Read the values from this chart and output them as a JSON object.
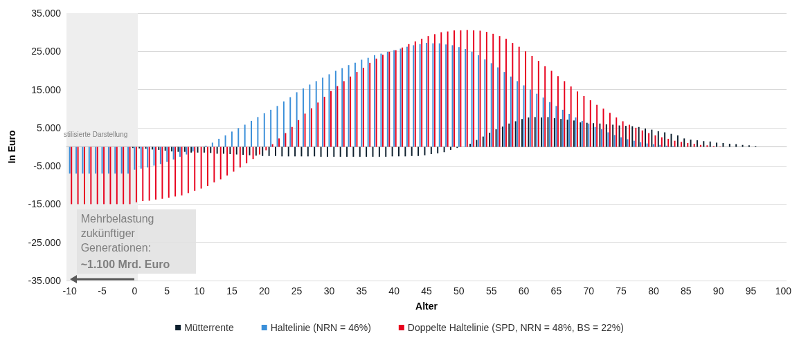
{
  "chart_data": {
    "type": "bar",
    "xlabel": "Alter",
    "ylabel": "In Euro",
    "categories": [
      "-10",
      null,
      null,
      null,
      null,
      "-5",
      null,
      null,
      null,
      null,
      "0",
      null,
      null,
      null,
      null,
      "5",
      null,
      null,
      null,
      null,
      "10",
      null,
      null,
      null,
      null,
      "15",
      null,
      null,
      null,
      null,
      "20",
      null,
      null,
      null,
      null,
      "25",
      null,
      null,
      null,
      null,
      "30",
      null,
      null,
      null,
      null,
      "35",
      null,
      null,
      null,
      null,
      "40",
      null,
      null,
      null,
      null,
      "45",
      null,
      null,
      null,
      null,
      "50",
      null,
      null,
      null,
      null,
      "55",
      null,
      null,
      null,
      null,
      "60",
      null,
      null,
      null,
      null,
      "65",
      null,
      null,
      null,
      null,
      "70",
      null,
      null,
      null,
      null,
      "75",
      null,
      null,
      null,
      null,
      "80",
      null,
      null,
      null,
      null,
      "85",
      null,
      null,
      null,
      null,
      "90",
      null,
      null,
      null,
      null,
      "95",
      null,
      null,
      null,
      null,
      "100"
    ],
    "series": [
      {
        "name": "Mütterrente",
        "color": "#0d1f2d",
        "values": [
          null,
          null,
          null,
          null,
          null,
          null,
          null,
          null,
          null,
          null,
          -300,
          -400,
          -500,
          -700,
          -800,
          -1000,
          -1200,
          -1300,
          -1300,
          -1500,
          -1500,
          -1500,
          -1600,
          -1800,
          -1800,
          -1900,
          -2000,
          -2100,
          -2200,
          -2300,
          -2400,
          -2400,
          -2400,
          -2500,
          -2500,
          -2500,
          -2500,
          -2500,
          -2500,
          -2600,
          -2600,
          -2600,
          -2600,
          -2600,
          -2600,
          -2600,
          -2600,
          -2600,
          -2600,
          -2600,
          -2500,
          -2500,
          -2500,
          -2400,
          -2400,
          -2200,
          -1900,
          -1700,
          -1400,
          -800,
          -300,
          null,
          800,
          1800,
          2700,
          3700,
          4600,
          5300,
          6100,
          6700,
          7300,
          7700,
          7800,
          7700,
          7800,
          7500,
          7300,
          7100,
          6900,
          6400,
          6300,
          6200,
          6100,
          5900,
          5800,
          5600,
          5500,
          5400,
          5200,
          4800,
          4500,
          4100,
          3800,
          3400,
          3000,
          2200,
          1900,
          1700,
          1500,
          1400,
          1100,
          1000,
          800,
          700,
          500,
          400,
          200,
          null,
          null,
          null,
          null
        ]
      },
      {
        "name": "Haltelinie (NRN = 46%)",
        "color": "#3a8fd9",
        "values": [
          -7000,
          -7000,
          -7000,
          -7000,
          -7000,
          -7000,
          -7000,
          -7000,
          -7000,
          -7000,
          -6000,
          -5700,
          -5400,
          -4900,
          -4500,
          -3900,
          -3300,
          -2600,
          -2000,
          -1200,
          null,
          300,
          1100,
          2100,
          3000,
          4000,
          4900,
          5800,
          6800,
          7800,
          8800,
          9700,
          10700,
          11900,
          13000,
          14300,
          15300,
          16300,
          17200,
          18100,
          19000,
          19900,
          20600,
          21400,
          22000,
          22800,
          23300,
          24000,
          24400,
          24900,
          25300,
          25700,
          26200,
          26600,
          26900,
          27200,
          27100,
          27100,
          26800,
          26600,
          26100,
          25600,
          24900,
          24000,
          22900,
          21900,
          20800,
          19600,
          18400,
          17200,
          16100,
          15000,
          13900,
          12900,
          11700,
          10700,
          9700,
          8600,
          7700,
          6800,
          6100,
          5200,
          4600,
          3800,
          3100,
          2500,
          2000,
          1600,
          1200,
          900,
          700,
          500,
          300,
          200,
          null,
          null,
          null,
          null,
          null,
          null,
          null,
          null,
          null,
          null,
          null,
          null,
          null,
          null,
          null,
          null,
          null
        ]
      },
      {
        "name": "Doppelte Haltelinie (SPD, NRN = 48%, BS = 22%)",
        "color": "#e8001c",
        "values": [
          -15000,
          -15000,
          -15000,
          -15000,
          -15000,
          -15000,
          -15000,
          -15000,
          -15000,
          -15000,
          -14500,
          -14200,
          -14100,
          -13800,
          -13600,
          -13300,
          -13000,
          -12700,
          -12100,
          -11500,
          -10900,
          -10200,
          -9300,
          -8500,
          -7500,
          -6500,
          -5400,
          -4300,
          -3200,
          -2000,
          -900,
          700,
          2200,
          3600,
          5200,
          7000,
          8700,
          10100,
          11600,
          13100,
          14600,
          15900,
          17200,
          18400,
          19600,
          20700,
          22000,
          23100,
          24100,
          24900,
          25300,
          26000,
          26900,
          27600,
          28300,
          29000,
          29500,
          30000,
          30200,
          30500,
          30500,
          30600,
          30500,
          30400,
          30100,
          29600,
          29000,
          28300,
          27200,
          26200,
          25000,
          23800,
          22500,
          21100,
          19900,
          18500,
          17200,
          15800,
          14500,
          13300,
          12200,
          11000,
          10000,
          8900,
          7700,
          6700,
          5800,
          5000,
          4300,
          3600,
          3000,
          2500,
          2100,
          1600,
          1300,
          1000,
          800,
          500,
          400,
          200,
          100,
          null,
          null,
          null,
          null,
          null,
          null,
          null,
          null,
          null,
          null
        ]
      }
    ],
    "ylim": [
      -35000,
      35000
    ],
    "yticks": [
      {
        "value": -35000,
        "label": "-35.000"
      },
      {
        "value": -25000,
        "label": "-25.000"
      },
      {
        "value": -15000,
        "label": "-15.000"
      },
      {
        "value": -5000,
        "label": "-5.000"
      },
      {
        "value": 5000,
        "label": "5.000"
      },
      {
        "value": 15000,
        "label": "15.000"
      },
      {
        "value": 25000,
        "label": "25.000"
      },
      {
        "value": 35000,
        "label": "35.000"
      }
    ],
    "bands": [
      {
        "axis": "x",
        "from": "-10",
        "to": "0",
        "label": "stilisierte Darstellung",
        "color": "#eeeeee"
      }
    ],
    "annotations": [
      "Mehrbelastung zukünftiger Generationen:",
      "~1.100 Mrd. Euro"
    ],
    "grid": "y",
    "legend": "bottom"
  }
}
